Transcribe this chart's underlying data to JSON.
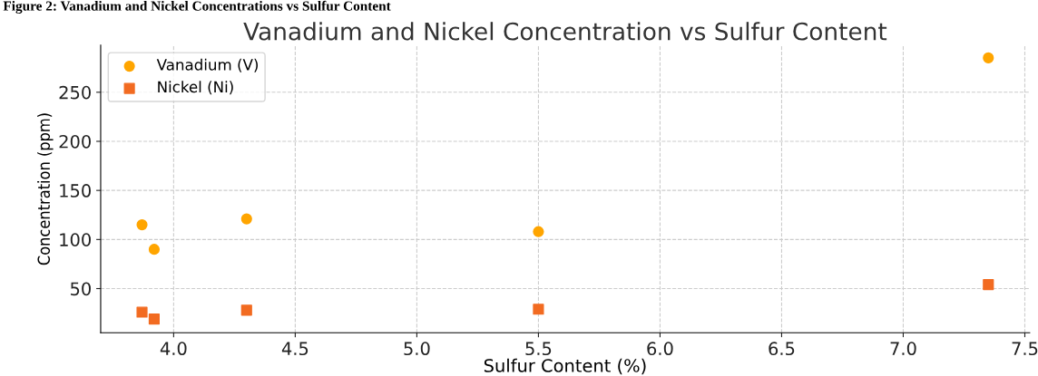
{
  "chart_data": {
    "type": "scatter",
    "title": "Vanadium and Nickel Concentration vs Sulfur Content",
    "annotations": [
      "Figure 2: Vanadium and Nickel Concentrations vs Sulfur Content"
    ],
    "xlabel": "Sulfur Content (%)",
    "ylabel": "Concentration (ppm)",
    "series": [
      {
        "name": "Vanadium (V)",
        "color": "#ffa500",
        "marker": "circle",
        "x": [
          3.87,
          3.92,
          4.3,
          5.5,
          7.35
        ],
        "values": [
          115,
          90,
          121,
          108,
          285
        ]
      },
      {
        "name": "Nickel (Ni)",
        "color": "#f26b21",
        "marker": "square",
        "x": [
          3.87,
          3.92,
          4.3,
          5.5,
          7.35
        ],
        "values": [
          26,
          19,
          28,
          29,
          54
        ]
      }
    ],
    "xlim": [
      3.7,
      7.52
    ],
    "xticks": [
      {
        "value": 4.0,
        "label": "4.0"
      },
      {
        "value": 4.5,
        "label": "4.5"
      },
      {
        "value": 5.0,
        "label": "5.0"
      },
      {
        "value": 5.5,
        "label": "5.5"
      },
      {
        "value": 6.0,
        "label": "6.0"
      },
      {
        "value": 6.5,
        "label": "6.5"
      },
      {
        "value": 7.0,
        "label": "7.0"
      },
      {
        "value": 7.5,
        "label": "7.5"
      }
    ],
    "ylim": [
      5,
      298
    ],
    "yticks": [
      50,
      100,
      150,
      200,
      250
    ],
    "grid": true,
    "legend": "top left"
  }
}
